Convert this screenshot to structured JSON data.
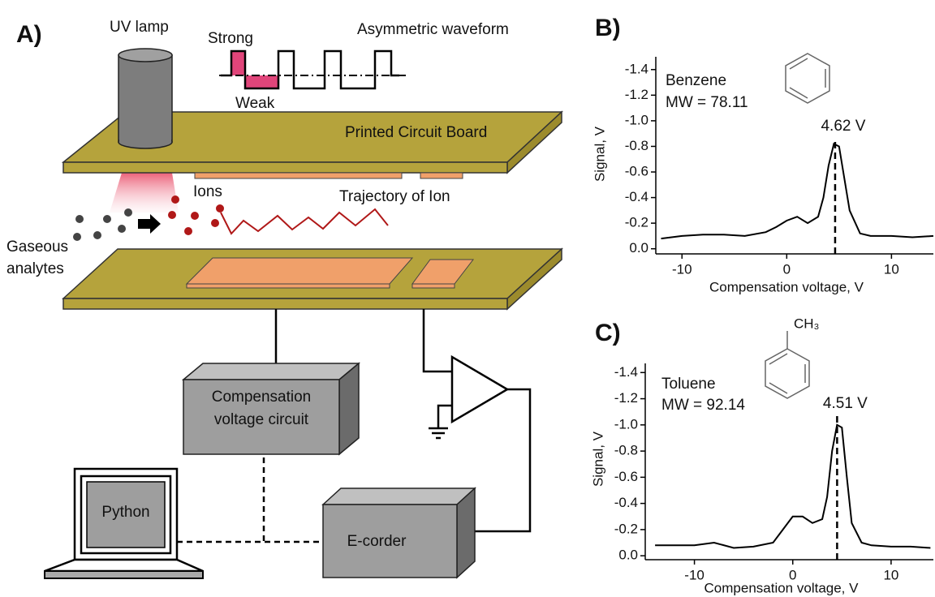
{
  "panels": {
    "a": "A)",
    "b": "B)",
    "c": "C)"
  },
  "diagram": {
    "uv_lamp": "UV lamp",
    "strong": "Strong",
    "weak": "Weak",
    "waveform": "Asymmetric waveform",
    "pcb": "Printed Circuit Board",
    "ions": "Ions",
    "trajectory": "Trajectory of Ion",
    "analytes": [
      "Gaseous",
      "analytes"
    ],
    "cv_circuit": [
      "Compensation",
      "voltage circuit"
    ],
    "python": "Python",
    "recorder": "E-corder"
  },
  "chart_data": [
    {
      "type": "line",
      "compound": "Benzene",
      "mw": "MW = 78.11",
      "color": "#000000",
      "peak": {
        "value": 4.62,
        "label": "4.62 V"
      },
      "x_label": "Compensation voltage, V",
      "y_label": "Signal, V",
      "x": [
        -12,
        -10,
        -8,
        -6,
        -4,
        -2,
        -1,
        0,
        1,
        2,
        3,
        3.5,
        4,
        4.5,
        5,
        5.5,
        6,
        7,
        8,
        10,
        12,
        14
      ],
      "values": [
        -0.08,
        -0.1,
        -0.11,
        -0.11,
        -0.1,
        -0.13,
        -0.17,
        -0.22,
        -0.25,
        -0.2,
        -0.25,
        -0.4,
        -0.65,
        -0.82,
        -0.8,
        -0.55,
        -0.3,
        -0.12,
        -0.1,
        -0.1,
        -0.09,
        -0.1
      ],
      "xlim": [
        -12.5,
        14
      ],
      "xticks": [
        -10,
        0,
        10
      ],
      "ylim": [
        0.04,
        -1.5
      ],
      "yticks": [
        {
          "value": 0,
          "label": "0.0"
        },
        -0.2,
        -0.4,
        -0.6,
        -0.8,
        {
          "value": -1,
          "label": "-1.0"
        },
        -1.2,
        -1.4
      ]
    },
    {
      "type": "line",
      "compound": "Toluene",
      "mw": "MW = 92.14",
      "color": "#000000",
      "substituent": "CH₃",
      "peak": {
        "value": 4.51,
        "label": "4.51 V"
      },
      "x_label": "Compensation voltage, V",
      "y_label": "Signal, V",
      "x": [
        -14,
        -12,
        -10,
        -8,
        -6,
        -4,
        -2,
        -1,
        0,
        1,
        2,
        3,
        3.5,
        4,
        4.5,
        5,
        5.5,
        6,
        7,
        8,
        10,
        12,
        14
      ],
      "values": [
        -0.08,
        -0.08,
        -0.08,
        -0.1,
        -0.06,
        -0.07,
        -0.1,
        -0.2,
        -0.3,
        -0.3,
        -0.25,
        -0.28,
        -0.45,
        -0.8,
        -1.0,
        -0.98,
        -0.6,
        -0.25,
        -0.1,
        -0.08,
        -0.07,
        -0.07,
        -0.06
      ],
      "xlim": [
        -15,
        14.3
      ],
      "xticks": [
        -10,
        0,
        10
      ],
      "ylim": [
        0.03,
        -1.47
      ],
      "yticks": [
        {
          "value": 0,
          "label": "0.0"
        },
        -0.2,
        -0.4,
        -0.6,
        -0.8,
        {
          "value": -1,
          "label": "-1.0"
        },
        -1.2,
        -1.4
      ]
    }
  ]
}
